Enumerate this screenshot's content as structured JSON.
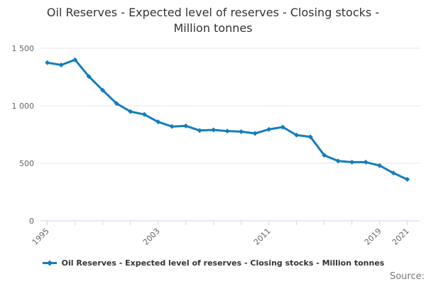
{
  "page": {
    "title_line1": "Oil Reserves - Expected level of reserves - Closing stocks -",
    "title_line2": "Million tonnes",
    "source_label": "Source:"
  },
  "legend": {
    "label": "Oil Reserves - Expected level of reserves - Closing stocks - Million tonnes",
    "marker": "line-with-diamond"
  },
  "colors": {
    "series_blue": "#147dbd",
    "grid_gray": "#e6e6e6",
    "axis_blue_gray": "#ccd6eb",
    "label_gray": "#666666",
    "title_dark": "#333333"
  },
  "chart_data": {
    "type": "line",
    "title": "Oil Reserves - Expected level of reserves - Closing stocks - Million tonnes",
    "series_name": "Oil Reserves - Expected level of reserves - Closing stocks - Million tonnes",
    "x": [
      1995,
      1996,
      1997,
      1998,
      1999,
      2000,
      2001,
      2002,
      2003,
      2004,
      2005,
      2006,
      2007,
      2008,
      2009,
      2010,
      2011,
      2012,
      2013,
      2014,
      2015,
      2016,
      2017,
      2018,
      2019,
      2020,
      2021
    ],
    "values": [
      1375,
      1355,
      1400,
      1255,
      1135,
      1020,
      950,
      925,
      860,
      820,
      825,
      785,
      790,
      780,
      775,
      760,
      795,
      815,
      745,
      730,
      570,
      520,
      510,
      510,
      480,
      415,
      360
    ],
    "xlabel": "",
    "ylabel": "",
    "ylim": [
      0,
      1500
    ],
    "y_ticks": [
      0,
      500,
      1000,
      1500
    ],
    "y_tick_labels": [
      "0",
      "500",
      "1 000",
      "1 500"
    ],
    "x_ticks": [
      1995,
      1997,
      1999,
      2001,
      2003,
      2005,
      2007,
      2009,
      2011,
      2013,
      2015,
      2017,
      2019,
      2021
    ],
    "x_labeled_ticks": [
      "1995",
      "2003",
      "2011",
      "2019",
      "2021"
    ],
    "grid": "horizontal",
    "legend_position": "bottom",
    "marker": "diamond"
  }
}
